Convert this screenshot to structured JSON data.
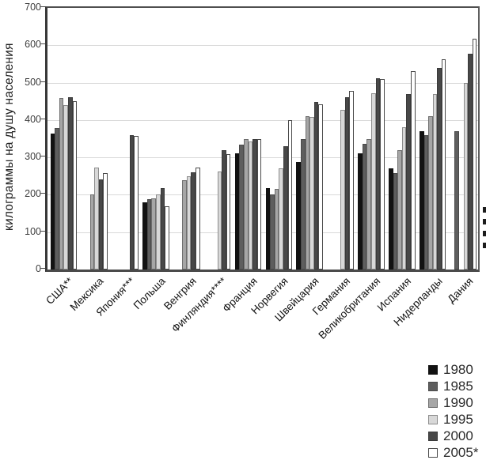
{
  "chart_data": {
    "type": "bar",
    "title": "",
    "ylabel": "килограммы на душу населения",
    "xlabel": "",
    "ylim": [
      0,
      700
    ],
    "yticks": [
      0,
      100,
      200,
      300,
      400,
      500,
      600,
      700
    ],
    "grid": true,
    "legend_position": "bottom-right",
    "categories": [
      "США**",
      "Мексика",
      "Япония***",
      "Польша",
      "Венгрия",
      "Финляндия****",
      "Франция",
      "Норвегия",
      "Швейцария",
      "Германия",
      "Великобритания",
      "Испания",
      "Нидерланды",
      "Дания"
    ],
    "series": [
      {
        "name": "1980",
        "color": "#121212",
        "border": "#121212",
        "values": [
          363,
          null,
          null,
          180,
          null,
          null,
          310,
          218,
          288,
          null,
          310,
          270,
          370,
          null
        ]
      },
      {
        "name": "1985",
        "color": "#5e5e5e",
        "border": "#4a4a4a",
        "values": [
          378,
          null,
          null,
          188,
          null,
          null,
          335,
          200,
          348,
          null,
          337,
          257,
          360,
          370
        ]
      },
      {
        "name": "1990",
        "color": "#a6a6a6",
        "border": "#6e6e6e",
        "values": [
          460,
          200,
          null,
          190,
          240,
          null,
          348,
          215,
          410,
          null,
          348,
          320,
          410,
          null
        ]
      },
      {
        "name": "1995",
        "color": "#d8d8d8",
        "border": "#8c8c8c",
        "values": [
          440,
          272,
          null,
          200,
          250,
          262,
          343,
          270,
          408,
          427,
          472,
          380,
          470,
          500
        ]
      },
      {
        "name": "2000",
        "color": "#484848",
        "border": "#3a3a3a",
        "values": [
          462,
          242,
          360,
          218,
          260,
          320,
          350,
          330,
          448,
          462,
          512,
          470,
          540,
          578
        ]
      },
      {
        "name": "2005*",
        "color": "#ffffff",
        "border": "#4a4a4a",
        "values": [
          450,
          258,
          358,
          170,
          272,
          308,
          350,
          400,
          442,
          478,
          510,
          530,
          562,
          618
        ]
      }
    ]
  },
  "edge_artifact": {
    "mark_count": 4,
    "first_y": 262,
    "spacing": 15
  }
}
